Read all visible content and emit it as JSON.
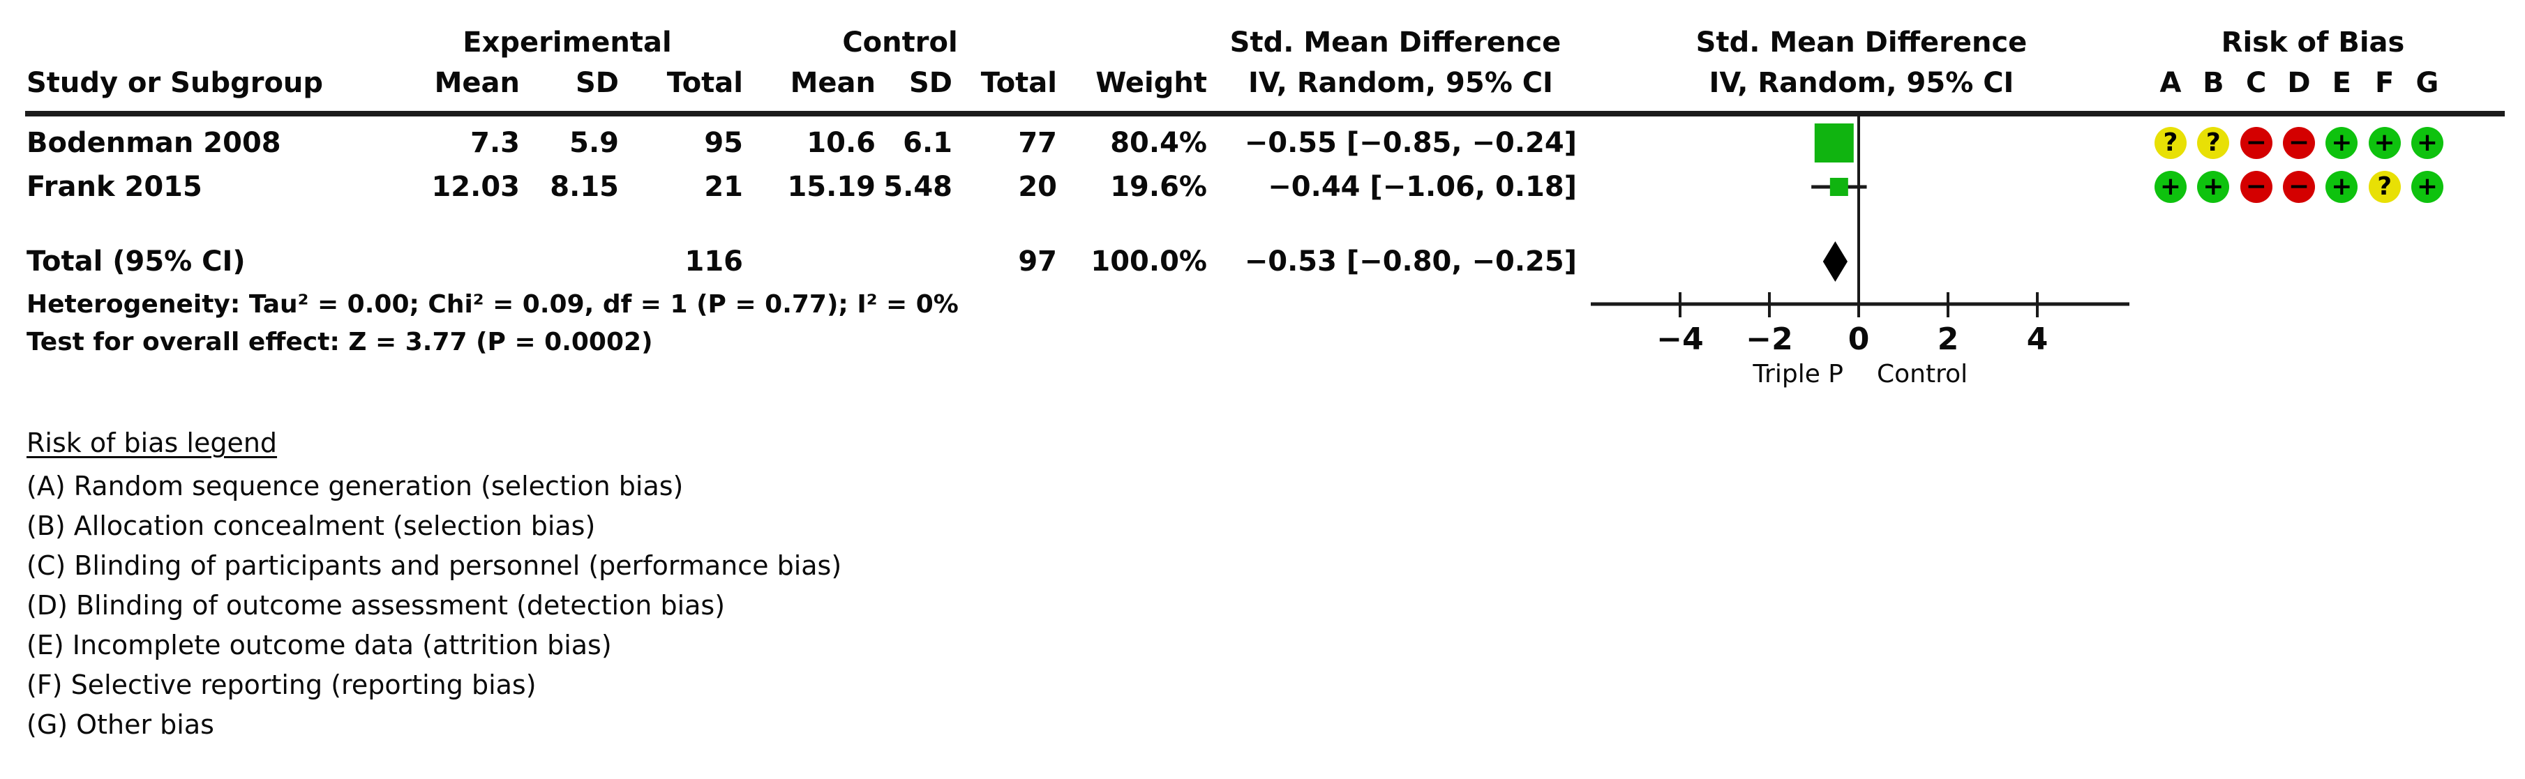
{
  "figure": {
    "group_headers": {
      "experimental": "Experimental",
      "control": "Control",
      "smd_text": "Std. Mean Difference",
      "smd_plot": "Std. Mean Difference",
      "risk_of_bias": "Risk of Bias"
    },
    "columns": {
      "study": "Study or Subgroup",
      "mean": "Mean",
      "sd": "SD",
      "total": "Total",
      "weight": "Weight",
      "ci": "IV, Random, 95% CI"
    },
    "rob_letters": [
      "A",
      "B",
      "C",
      "D",
      "E",
      "F",
      "G"
    ],
    "rows": [
      {
        "study": "Bodenman 2008",
        "exp_mean": "7.3",
        "exp_sd": "5.9",
        "exp_total": "95",
        "ctrl_mean": "10.6",
        "ctrl_sd": "6.1",
        "ctrl_total": "77",
        "weight": "80.4%",
        "ci_text": "−0.55 [−0.85, −0.24]",
        "rob": [
          "unclear",
          "unclear",
          "high",
          "high",
          "low",
          "low",
          "low"
        ]
      },
      {
        "study": "Frank 2015",
        "exp_mean": "12.03",
        "exp_sd": "8.15",
        "exp_total": "21",
        "ctrl_mean": "15.19",
        "ctrl_sd": "5.48",
        "ctrl_total": "20",
        "weight": "19.6%",
        "ci_text": "−0.44 [−1.06, 0.18]",
        "rob": [
          "low",
          "low",
          "high",
          "high",
          "low",
          "unclear",
          "low"
        ]
      }
    ],
    "total_row": {
      "label": "Total (95% CI)",
      "exp_total": "116",
      "ctrl_total": "97",
      "weight": "100.0%",
      "ci_text": "−0.53 [−0.80, −0.25]"
    },
    "heterogeneity": "Heterogeneity: Tau² = 0.00; Chi² = 0.09, df = 1 (P = 0.77); I² = 0%",
    "overall_effect": "Test for overall effect: Z = 3.77 (P = 0.0002)",
    "legend": {
      "title": "Risk of bias legend",
      "items": [
        "(A) Random sequence generation (selection bias)",
        "(B) Allocation concealment (selection bias)",
        "(C) Blinding of participants and personnel (performance bias)",
        "(D) Blinding of outcome assessment (detection bias)",
        "(E) Incomplete outcome data (attrition bias)",
        "(F) Selective reporting (reporting bias)",
        "(G) Other bias"
      ]
    }
  },
  "colors": {
    "low": "#0ec20e",
    "high": "#d40000",
    "unclear": "#e8e005",
    "marker_green": "#10b410",
    "diamond": "#000000",
    "line": "#1a1a1a"
  },
  "rob_symbols": {
    "low": "+",
    "high": "−",
    "unclear": "?"
  },
  "chart_data": {
    "type": "forest",
    "title": "Std. Mean Difference, IV, Random, 95% CI",
    "x_axis": {
      "ticks": [
        -4,
        -2,
        0,
        2,
        4
      ],
      "tick_labels": [
        "−4",
        "−2",
        "0",
        "2",
        "4"
      ],
      "range": [
        -6,
        6
      ],
      "left_label": "Triple P",
      "right_label": "Control"
    },
    "studies": [
      {
        "name": "Bodenman 2008",
        "estimate": -0.55,
        "ci_low": -0.85,
        "ci_high": -0.24,
        "weight_pct": 80.4
      },
      {
        "name": "Frank 2015",
        "estimate": -0.44,
        "ci_low": -1.06,
        "ci_high": 0.18,
        "weight_pct": 19.6
      }
    ],
    "pooled": {
      "estimate": -0.53,
      "ci_low": -0.8,
      "ci_high": -0.25
    }
  }
}
